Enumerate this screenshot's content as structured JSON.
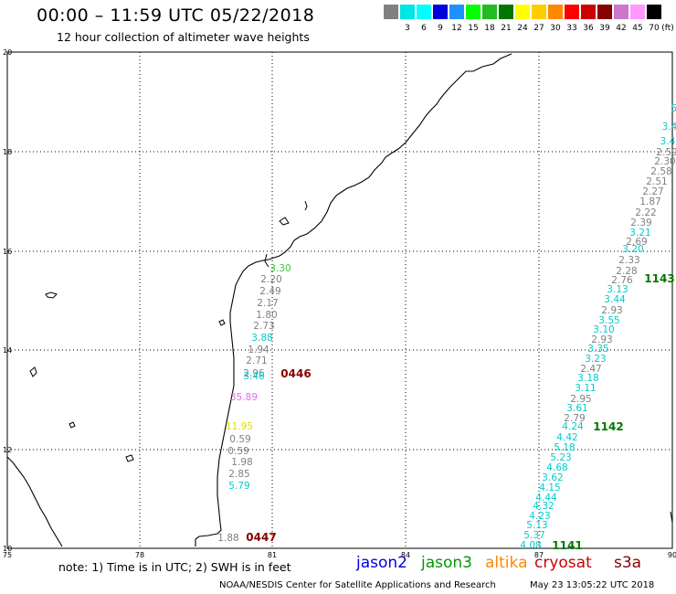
{
  "header": {
    "title": "00:00 – 11:59 UTC 05/22/2018",
    "subtitle": "12 hour collection of altimeter wave heights"
  },
  "legend": {
    "unit": "(ft)",
    "items": [
      {
        "label": "",
        "color": "#808080"
      },
      {
        "label": "3",
        "color": "#00e5e5"
      },
      {
        "label": "6",
        "color": "#00ffff"
      },
      {
        "label": "9",
        "color": "#0000dd"
      },
      {
        "label": "12",
        "color": "#1e90ff"
      },
      {
        "label": "15",
        "color": "#00ff00"
      },
      {
        "label": "18",
        "color": "#22bb22"
      },
      {
        "label": "21",
        "color": "#007700"
      },
      {
        "label": "24",
        "color": "#ffff00"
      },
      {
        "label": "27",
        "color": "#ffcc00"
      },
      {
        "label": "30",
        "color": "#ff8800"
      },
      {
        "label": "33",
        "color": "#ff0000"
      },
      {
        "label": "36",
        "color": "#cc0000"
      },
      {
        "label": "39",
        "color": "#880000"
      },
      {
        "label": "42",
        "color": "#cc77cc"
      },
      {
        "label": "45",
        "color": "#ff99ff"
      },
      {
        "label": "70",
        "color": "#000000"
      }
    ]
  },
  "axes": {
    "lon_ticks": [
      "75",
      "78",
      "81",
      "84",
      "87",
      "90"
    ],
    "lat_ticks": [
      "10",
      "12",
      "14",
      "16",
      "18",
      "20"
    ]
  },
  "tracks": {
    "coastal": [
      {
        "text": "3.30",
        "color": "#33cc33"
      },
      {
        "text": "2.20",
        "color": "#808080"
      },
      {
        "text": "2.49",
        "color": "#808080"
      },
      {
        "text": "2.17",
        "color": "#808080"
      },
      {
        "text": "1.80",
        "color": "#808080"
      },
      {
        "text": "2.73",
        "color": "#808080"
      },
      {
        "text": "3.88",
        "color": "#00cccc"
      },
      {
        "text": "1.94",
        "color": "#808080"
      },
      {
        "text": "2.71",
        "color": "#808080"
      },
      {
        "text": "2.96",
        "color": "#808080"
      },
      {
        "text": "3.46",
        "color": "#00cccc"
      },
      {
        "text": "35.89",
        "color": "#ee66ee"
      },
      {
        "text": "11.95",
        "color": "#dddd00"
      },
      {
        "text": "0.59",
        "color": "#808080"
      },
      {
        "text": "0.59",
        "color": "#808080"
      },
      {
        "text": "1.98",
        "color": "#808080"
      },
      {
        "text": "2.85",
        "color": "#808080"
      },
      {
        "text": "5.79",
        "color": "#00cccc"
      },
      {
        "text": "1.88",
        "color": "#808080"
      }
    ],
    "offshore": [
      {
        "text": "5",
        "color": "#00cccc"
      },
      {
        "text": "3.4",
        "color": "#00cccc"
      },
      {
        "text": "3.4",
        "color": "#00cccc"
      },
      {
        "text": "2.59",
        "color": "#808080"
      },
      {
        "text": "2.30",
        "color": "#808080"
      },
      {
        "text": "2.58",
        "color": "#808080"
      },
      {
        "text": "2.51",
        "color": "#808080"
      },
      {
        "text": "2.27",
        "color": "#808080"
      },
      {
        "text": "1.87",
        "color": "#808080"
      },
      {
        "text": "2.22",
        "color": "#808080"
      },
      {
        "text": "2.39",
        "color": "#808080"
      },
      {
        "text": "2.69",
        "color": "#808080"
      },
      {
        "text": "3.20",
        "color": "#00cccc"
      },
      {
        "text": "3.21",
        "color": "#00cccc"
      },
      {
        "text": "2.33",
        "color": "#808080"
      },
      {
        "text": "2.28",
        "color": "#808080"
      },
      {
        "text": "2.76",
        "color": "#808080"
      },
      {
        "text": "3.13",
        "color": "#00cccc"
      },
      {
        "text": "3.44",
        "color": "#00cccc"
      },
      {
        "text": "2.93",
        "color": "#808080"
      },
      {
        "text": "3.55",
        "color": "#00cccc"
      },
      {
        "text": "3.10",
        "color": "#00cccc"
      },
      {
        "text": "2.93",
        "color": "#808080"
      },
      {
        "text": "3.35",
        "color": "#00cccc"
      },
      {
        "text": "3.23",
        "color": "#00cccc"
      },
      {
        "text": "2.47",
        "color": "#808080"
      },
      {
        "text": "3.18",
        "color": "#00cccc"
      },
      {
        "text": "3.11",
        "color": "#00cccc"
      },
      {
        "text": "2.95",
        "color": "#808080"
      },
      {
        "text": "3.61",
        "color": "#00cccc"
      },
      {
        "text": "2.79",
        "color": "#808080"
      },
      {
        "text": "4.24",
        "color": "#00cccc"
      },
      {
        "text": "4.42",
        "color": "#00cccc"
      },
      {
        "text": "5.18",
        "color": "#00cccc"
      },
      {
        "text": "5.23",
        "color": "#00cccc"
      },
      {
        "text": "4.68",
        "color": "#00cccc"
      },
      {
        "text": "3.62",
        "color": "#00cccc"
      },
      {
        "text": "4.15",
        "color": "#00cccc"
      },
      {
        "text": "4.44",
        "color": "#00cccc"
      },
      {
        "text": "4.32",
        "color": "#00cccc"
      },
      {
        "text": "4.23",
        "color": "#00cccc"
      },
      {
        "text": "5.13",
        "color": "#00cccc"
      },
      {
        "text": "5.37",
        "color": "#00cccc"
      },
      {
        "text": "4.08",
        "color": "#00cccc"
      }
    ]
  },
  "pass_times": [
    {
      "text": "0446",
      "color": "#880000"
    },
    {
      "text": "0447",
      "color": "#880000"
    },
    {
      "text": "1143",
      "color": "#007700"
    },
    {
      "text": "1142",
      "color": "#007700"
    },
    {
      "text": "1141",
      "color": "#007700"
    }
  ],
  "footer": {
    "note": "note: 1) Time is in UTC; 2) SWH is in feet",
    "missions": [
      {
        "name": "jason2",
        "color": "#0000dd"
      },
      {
        "name": "jason3",
        "color": "#009900"
      },
      {
        "name": "altika",
        "color": "#ff8800"
      },
      {
        "name": "cryosat",
        "color": "#cc0000"
      },
      {
        "name": "s3a",
        "color": "#880000"
      }
    ],
    "credit": "NOAA/NESDIS Center for Satellite Applications and Research",
    "timestamp": "May 23 13:05:22 UTC 2018"
  }
}
